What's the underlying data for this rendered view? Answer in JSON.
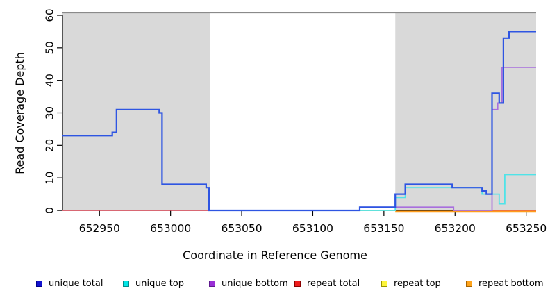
{
  "chart_data": {
    "type": "line",
    "subtype": "step-coverage",
    "title": "",
    "xlabel": "Coordinate in Reference Genome",
    "ylabel": "Read Coverage Depth",
    "x_domain": [
      652924,
      653257
    ],
    "ylim": [
      0,
      60
    ],
    "x_ticks": [
      652950,
      653000,
      653050,
      653100,
      653150,
      653200,
      653250
    ],
    "y_ticks": [
      0,
      10,
      20,
      30,
      40,
      50,
      60
    ],
    "grid": false,
    "shaded_regions": [
      {
        "name": "repeat-region-1",
        "start": 652924,
        "end": 653028,
        "fill": "#d9d9d9"
      },
      {
        "name": "repeat-region-2",
        "start": 653158,
        "end": 653257,
        "fill": "#d9d9d9"
      }
    ],
    "region_top_line_color": "#8a8a8a",
    "series": [
      {
        "name": "repeat top",
        "color": "#f0e545",
        "width": 1.6,
        "dy": 0,
        "segments": [
          {
            "points": [
              [
                653028,
                0
              ]
            ],
            "end": 653158
          }
        ]
      },
      {
        "name": "repeat total",
        "color": "#e04a5a",
        "width": 1.6,
        "dy": 0,
        "segments": [
          {
            "points": [
              [
                652924,
                0
              ]
            ],
            "end": 653028
          },
          {
            "points": [
              [
                653200,
                0
              ]
            ],
            "end": 653257
          }
        ]
      },
      {
        "name": "repeat bottom",
        "color": "#ff9d1c",
        "width": 1.8,
        "dy": 1.4,
        "segments": [
          {
            "points": [
              [
                653158,
                0
              ]
            ],
            "end": 653257
          }
        ]
      },
      {
        "name": "unique top",
        "color": "#4fe3e8",
        "width": 1.8,
        "dy": 0,
        "segments": [
          {
            "points": [
              [
                653028,
                0
              ],
              [
                653158,
                4
              ],
              [
                653165,
                7
              ],
              [
                653219,
                5
              ],
              [
                653231,
                2
              ],
              [
                653235,
                11
              ]
            ],
            "end": 653257
          }
        ]
      },
      {
        "name": "unique bottom",
        "color": "#a86fdd",
        "width": 1.8,
        "dy": 0,
        "segments": [
          {
            "points": [
              [
                653133,
                1
              ],
              [
                653199,
                0
              ],
              [
                653226,
                31
              ],
              [
                653230,
                33
              ],
              [
                653233,
                44
              ]
            ],
            "end": 653257
          }
        ]
      },
      {
        "name": "unique total",
        "color": "#2e55e2",
        "width": 2.2,
        "dy": 0,
        "segments": [
          {
            "points": [
              [
                652924,
                23
              ],
              [
                652959,
                24
              ],
              [
                652962,
                31
              ],
              [
                652992,
                30
              ],
              [
                652994,
                8
              ],
              [
                653025,
                7
              ],
              [
                653027,
                0
              ],
              [
                653133,
                1
              ],
              [
                653158,
                5
              ],
              [
                653165,
                8
              ],
              [
                653198,
                7
              ],
              [
                653219,
                6
              ],
              [
                653222,
                5
              ],
              [
                653226,
                36
              ],
              [
                653231,
                33
              ],
              [
                653234,
                53
              ],
              [
                653238,
                55
              ]
            ],
            "end": 653257
          }
        ]
      }
    ]
  },
  "labels": {
    "xlabel": "Coordinate in Reference Genome",
    "ylabel": "Read Coverage Depth"
  },
  "legend": {
    "items": [
      {
        "label": "unique total",
        "fill": "#1212cf",
        "border": "#00008b"
      },
      {
        "label": "unique top",
        "fill": "#00e6e6",
        "border": "#008b8b"
      },
      {
        "label": "unique bottom",
        "fill": "#9a2fd6",
        "border": "#5e1a8e"
      },
      {
        "label": "repeat total",
        "fill": "#ee1c1c",
        "border": "#8b0000"
      },
      {
        "label": "repeat top",
        "fill": "#fdf53a",
        "border": "#9a9400"
      },
      {
        "label": "repeat bottom",
        "fill": "#ffa31a",
        "border": "#a66300"
      }
    ]
  }
}
